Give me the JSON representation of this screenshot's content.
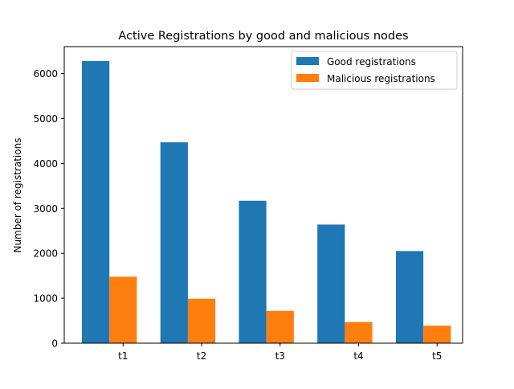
{
  "chart_data": {
    "type": "bar",
    "title": "Active Registrations by good and malicious nodes",
    "xlabel": "",
    "ylabel": "Number of registrations",
    "categories": [
      "t1",
      "t2",
      "t3",
      "t4",
      "t5"
    ],
    "series": [
      {
        "name": "Good registrations",
        "values": [
          6280,
          4470,
          3170,
          2640,
          2050
        ],
        "color": "#1f77b4"
      },
      {
        "name": "Malicious registrations",
        "values": [
          1480,
          990,
          720,
          470,
          390
        ],
        "color": "#ff7f0e"
      }
    ],
    "ylim": [
      0,
      6600
    ],
    "yticks": [
      0,
      1000,
      2000,
      3000,
      4000,
      5000,
      6000
    ],
    "grid": false,
    "legend_position": "top-right"
  }
}
